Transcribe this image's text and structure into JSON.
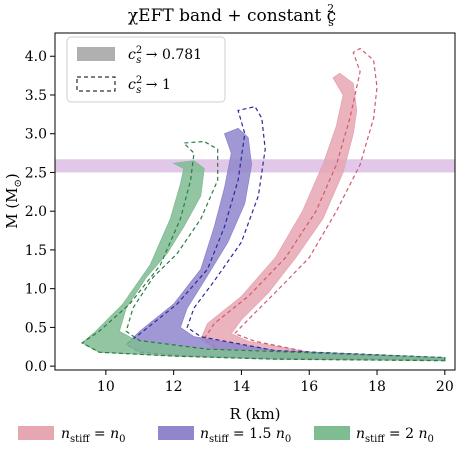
{
  "chart_data": {
    "type": "area",
    "title": "χEFT band + constant c",
    "title_sup": "2",
    "title_sub": "s",
    "xlabel": "R (km)",
    "ylabel": "M (M",
    "ylabel_sub": "⊙",
    "ylabel_close": ")",
    "xlim": [
      8.5,
      20.3
    ],
    "ylim": [
      -0.05,
      4.3
    ],
    "xticks": [
      10,
      12,
      14,
      16,
      18,
      20
    ],
    "yticks": [
      0.0,
      0.5,
      1.0,
      1.5,
      2.0,
      2.5,
      3.0,
      3.5,
      4.0
    ],
    "xtick_labels": [
      "10",
      "12",
      "14",
      "16",
      "18",
      "20"
    ],
    "ytick_labels": [
      "0.0",
      "0.5",
      "1.0",
      "1.5",
      "2.0",
      "2.5",
      "3.0",
      "3.5",
      "4.0"
    ],
    "horizontal_band": {
      "ymin": 2.5,
      "ymax": 2.67,
      "color": "#dcbde4"
    },
    "style_legend": [
      {
        "prefix": "c",
        "sup": "2",
        "sub": "s",
        "text": " → 0.781",
        "style": "filled"
      },
      {
        "prefix": "c",
        "sup": "2",
        "sub": "s",
        "text": " → 1",
        "style": "dashed"
      }
    ],
    "series_legend": [
      {
        "var": "n",
        "sub": "stiff",
        "eq": " = ",
        "val": "n",
        "val_sub": "0",
        "color": "#e6a6b2"
      },
      {
        "var": "n",
        "sub": "stiff",
        "eq": " = 1.5 ",
        "val": "n",
        "val_sub": "0",
        "color": "#8f86cc"
      },
      {
        "var": "n",
        "sub": "stiff",
        "eq": " = 2 ",
        "val": "n",
        "val_sub": "0",
        "color": "#7fbc92"
      }
    ],
    "series": [
      {
        "fill": "#e6a6b2",
        "line": "#d05a70",
        "filled": {
          "left": [
            [
              20.0,
              0.08
            ],
            [
              16,
              0.11
            ],
            [
              14,
              0.15
            ],
            [
              13.2,
              0.22
            ],
            [
              12.8,
              0.35
            ],
            [
              13.0,
              0.55
            ],
            [
              14.0,
              0.9
            ],
            [
              15.0,
              1.4
            ],
            [
              15.8,
              2.0
            ],
            [
              16.4,
              2.6
            ],
            [
              16.8,
              3.1
            ],
            [
              17.0,
              3.5
            ],
            [
              16.7,
              3.72
            ],
            [
              16.9,
              3.78
            ]
          ],
          "right": [
            [
              17.3,
              3.65
            ],
            [
              17.4,
              3.3
            ],
            [
              17.3,
              3.0
            ],
            [
              17.0,
              2.5
            ],
            [
              16.4,
              1.9
            ],
            [
              15.6,
              1.4
            ],
            [
              14.8,
              0.95
            ],
            [
              14.0,
              0.6
            ],
            [
              13.7,
              0.42
            ],
            [
              14.2,
              0.32
            ],
            [
              16,
              0.18
            ],
            [
              20.0,
              0.1
            ]
          ]
        },
        "dashed": {
          "left": [
            [
              20.0,
              0.08
            ],
            [
              16,
              0.11
            ],
            [
              14,
              0.15
            ],
            [
              13.3,
              0.22
            ],
            [
              12.9,
              0.35
            ],
            [
              13.2,
              0.55
            ],
            [
              14.2,
              0.9
            ],
            [
              15.3,
              1.4
            ],
            [
              16.2,
              2.0
            ],
            [
              16.8,
              2.6
            ],
            [
              17.2,
              3.2
            ],
            [
              17.5,
              3.8
            ],
            [
              17.3,
              4.05
            ],
            [
              17.5,
              4.1
            ]
          ],
          "right": [
            [
              17.9,
              3.95
            ],
            [
              18.0,
              3.6
            ],
            [
              17.9,
              3.2
            ],
            [
              17.5,
              2.6
            ],
            [
              16.8,
              2.0
            ],
            [
              16.0,
              1.4
            ],
            [
              15.0,
              0.95
            ],
            [
              14.2,
              0.6
            ],
            [
              13.8,
              0.42
            ],
            [
              14.4,
              0.32
            ],
            [
              16,
              0.18
            ],
            [
              20.0,
              0.1
            ]
          ]
        }
      },
      {
        "fill": "#8f86cc",
        "line": "#2a2a9a",
        "filled": {
          "left": [
            [
              20.0,
              0.08
            ],
            [
              15,
              0.1
            ],
            [
              12.5,
              0.13
            ],
            [
              11.0,
              0.18
            ],
            [
              10.6,
              0.28
            ],
            [
              11.0,
              0.45
            ],
            [
              12.0,
              0.8
            ],
            [
              12.8,
              1.25
            ],
            [
              13.2,
              1.8
            ],
            [
              13.5,
              2.3
            ],
            [
              13.7,
              2.75
            ],
            [
              13.5,
              3.0
            ],
            [
              13.9,
              3.07
            ]
          ],
          "right": [
            [
              14.2,
              2.95
            ],
            [
              14.3,
              2.6
            ],
            [
              14.1,
              2.1
            ],
            [
              13.6,
              1.6
            ],
            [
              12.9,
              1.1
            ],
            [
              12.4,
              0.75
            ],
            [
              12.2,
              0.5
            ],
            [
              12.6,
              0.38
            ],
            [
              15,
              0.2
            ],
            [
              20.0,
              0.11
            ]
          ]
        },
        "dashed": {
          "left": [
            [
              20.0,
              0.08
            ],
            [
              15,
              0.1
            ],
            [
              12.5,
              0.13
            ],
            [
              11.0,
              0.18
            ],
            [
              10.6,
              0.28
            ],
            [
              11.1,
              0.45
            ],
            [
              12.1,
              0.8
            ],
            [
              13.0,
              1.25
            ],
            [
              13.5,
              1.8
            ],
            [
              13.9,
              2.4
            ],
            [
              14.1,
              3.0
            ],
            [
              13.9,
              3.3
            ],
            [
              14.4,
              3.35
            ]
          ],
          "right": [
            [
              14.6,
              3.2
            ],
            [
              14.7,
              2.8
            ],
            [
              14.5,
              2.2
            ],
            [
              14.0,
              1.6
            ],
            [
              13.2,
              1.1
            ],
            [
              12.6,
              0.75
            ],
            [
              12.4,
              0.5
            ],
            [
              12.8,
              0.38
            ],
            [
              15,
              0.2
            ],
            [
              20.0,
              0.11
            ]
          ]
        }
      },
      {
        "fill": "#7fbc92",
        "line": "#2e7a45",
        "filled": {
          "left": [
            [
              20.0,
              0.07
            ],
            [
              15,
              0.09
            ],
            [
              12,
              0.13
            ],
            [
              9.8,
              0.18
            ],
            [
              9.3,
              0.3
            ],
            [
              9.7,
              0.45
            ],
            [
              10.5,
              0.8
            ],
            [
              11.3,
              1.3
            ],
            [
              11.9,
              1.9
            ],
            [
              12.2,
              2.35
            ],
            [
              12.3,
              2.55
            ],
            [
              12.0,
              2.62
            ],
            [
              12.6,
              2.65
            ]
          ],
          "right": [
            [
              12.9,
              2.55
            ],
            [
              12.8,
              2.2
            ],
            [
              12.3,
              1.8
            ],
            [
              11.8,
              1.45
            ],
            [
              11.2,
              1.15
            ],
            [
              10.6,
              0.75
            ],
            [
              10.4,
              0.45
            ],
            [
              10.9,
              0.33
            ],
            [
              13,
              0.22
            ],
            [
              20.0,
              0.11
            ]
          ]
        },
        "dashed": {
          "left": [
            [
              20.0,
              0.07
            ],
            [
              15,
              0.09
            ],
            [
              12,
              0.13
            ],
            [
              9.8,
              0.18
            ],
            [
              9.3,
              0.3
            ],
            [
              9.8,
              0.45
            ],
            [
              10.7,
              0.8
            ],
            [
              11.6,
              1.3
            ],
            [
              12.2,
              1.9
            ],
            [
              12.5,
              2.4
            ],
            [
              12.6,
              2.75
            ],
            [
              12.3,
              2.88
            ],
            [
              12.9,
              2.9
            ]
          ],
          "right": [
            [
              13.3,
              2.8
            ],
            [
              13.3,
              2.4
            ],
            [
              12.8,
              1.9
            ],
            [
              12.1,
              1.45
            ],
            [
              11.4,
              1.15
            ],
            [
              10.8,
              0.75
            ],
            [
              10.6,
              0.45
            ],
            [
              11.0,
              0.33
            ],
            [
              13,
              0.22
            ],
            [
              20.0,
              0.11
            ]
          ]
        }
      }
    ]
  }
}
